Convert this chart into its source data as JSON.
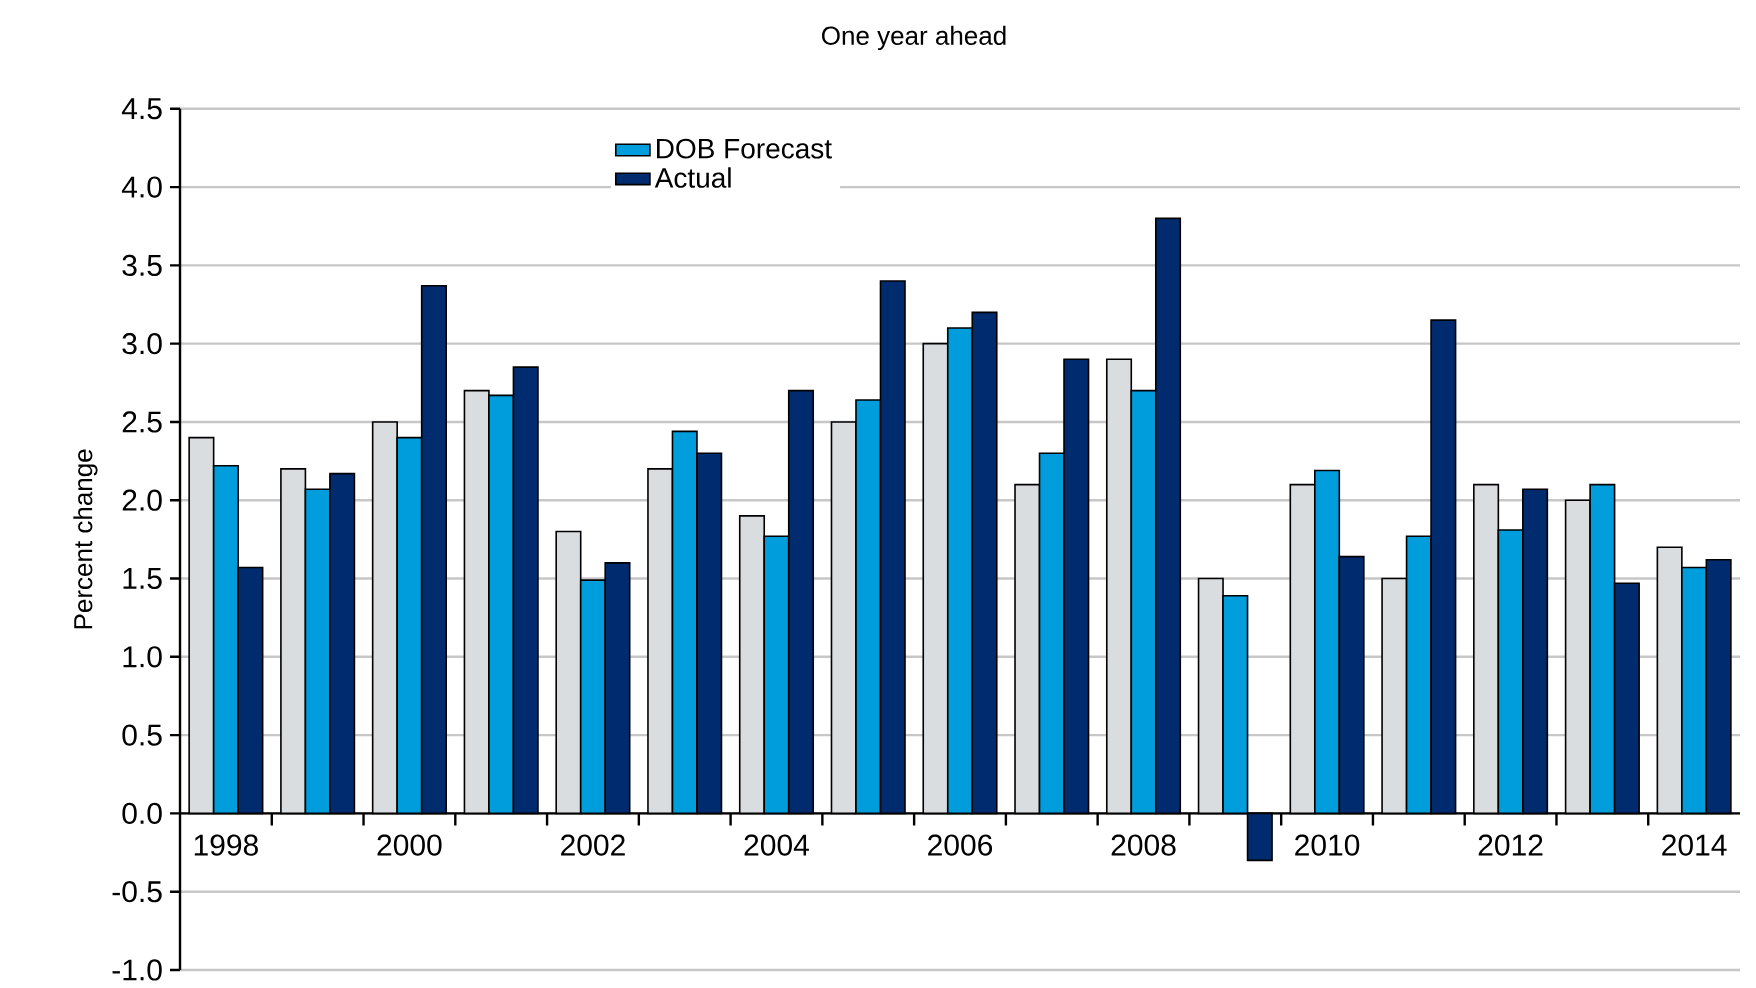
{
  "chart_data": {
    "type": "bar",
    "subtitle": "One year ahead",
    "ylabel": "Percent change",
    "categories": [
      "1998",
      null,
      "2000",
      null,
      "2002",
      null,
      "2004",
      null,
      "2006",
      null,
      "2008",
      null,
      "2010",
      null,
      "2012",
      null,
      "2014"
    ],
    "series": [
      {
        "color": "#d9dde0",
        "values": [
          2.4,
          2.2,
          2.5,
          2.7,
          1.8,
          2.2,
          1.9,
          2.5,
          3.0,
          2.1,
          2.9,
          1.5,
          2.1,
          1.5,
          2.1,
          2.0,
          1.7
        ]
      },
      {
        "name": "DOB Forecast",
        "color": "#009ddc",
        "values": [
          2.22,
          2.07,
          2.4,
          2.67,
          1.49,
          2.44,
          1.77,
          2.64,
          3.1,
          2.3,
          2.7,
          1.39,
          2.19,
          1.77,
          1.81,
          2.1,
          1.57
        ]
      },
      {
        "name": "Actual",
        "color": "#002b6e",
        "values": [
          1.57,
          2.17,
          3.37,
          2.85,
          1.6,
          2.3,
          2.7,
          3.4,
          3.2,
          2.9,
          3.8,
          -0.3,
          1.64,
          3.15,
          2.07,
          1.47,
          1.62
        ]
      }
    ],
    "ylim": [
      -1.0,
      4.5
    ],
    "yticks": [
      {
        "value": -1.0,
        "label": "-1.0"
      },
      {
        "value": -0.5,
        "label": "-0.5"
      },
      {
        "value": 0,
        "label": "0.0"
      },
      {
        "value": 0.5,
        "label": "0.5"
      },
      {
        "value": 1.0,
        "label": "1.0"
      },
      {
        "value": 1.5,
        "label": "1.5"
      },
      {
        "value": 2.0,
        "label": "2.0"
      },
      {
        "value": 2.5,
        "label": "2.5"
      },
      {
        "value": 3.0,
        "label": "3.0"
      },
      {
        "value": 3.5,
        "label": "3.5"
      },
      {
        "value": 4.0,
        "label": "4.0"
      },
      {
        "value": 4.5,
        "label": "4.5"
      }
    ],
    "grid": "y",
    "legend": "top left"
  }
}
